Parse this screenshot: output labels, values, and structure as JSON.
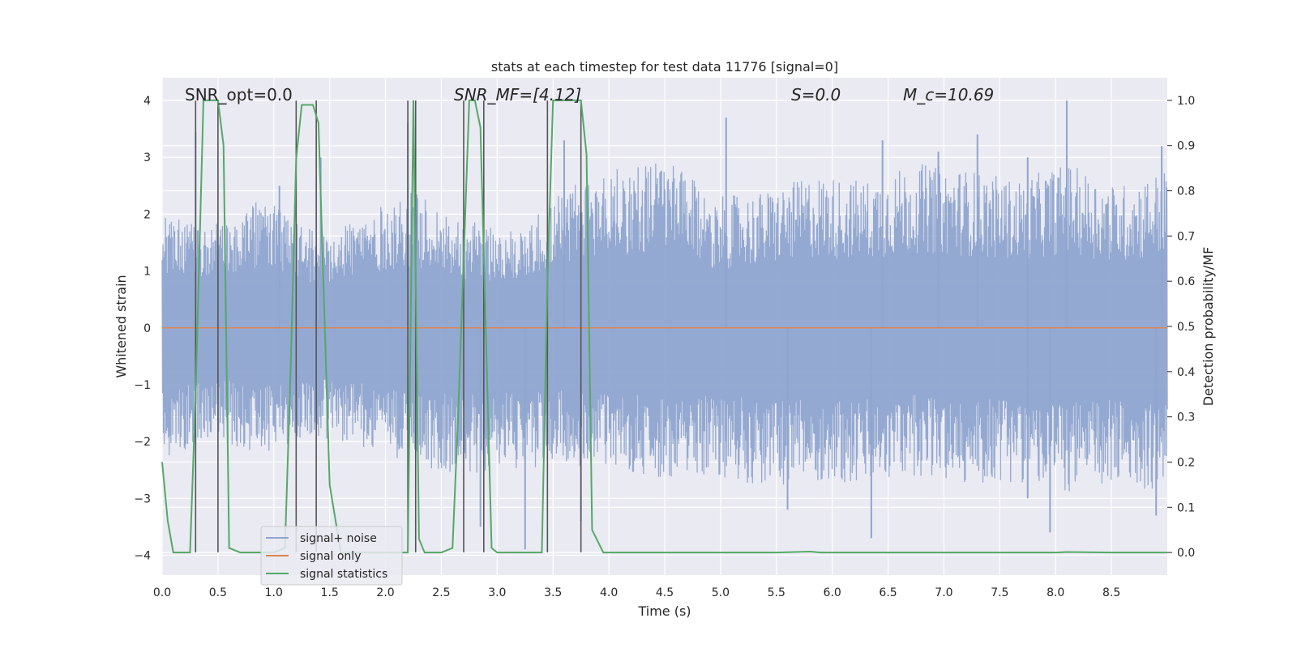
{
  "chart_data": {
    "type": "line",
    "title": "stats at each timestep for test data 11776 [signal=0]",
    "xlabel": "Time (s)",
    "ylabel": "Whitened strain",
    "y2label": "Detection probability/MF",
    "xlim": [
      0.0,
      9.0
    ],
    "ylim": [
      -4.35,
      4.4
    ],
    "y2lim": [
      -0.05,
      1.05
    ],
    "xticks": [
      0.0,
      0.5,
      1.0,
      1.5,
      2.0,
      2.5,
      3.0,
      3.5,
      4.0,
      4.5,
      5.0,
      5.5,
      6.0,
      6.5,
      7.0,
      7.5,
      8.0,
      8.5
    ],
    "xtick_labels": [
      "0.0",
      "0.5",
      "1.0",
      "1.5",
      "2.0",
      "2.5",
      "3.0",
      "3.5",
      "4.0",
      "4.5",
      "5.0",
      "5.5",
      "6.0",
      "6.5",
      "7.0",
      "7.5",
      "8.0",
      "8.5"
    ],
    "yticks": [
      -4,
      -3,
      -2,
      -1,
      0,
      1,
      2,
      3,
      4
    ],
    "ytick_labels": [
      "−4",
      "−3",
      "−2",
      "−1",
      "0",
      "1",
      "2",
      "3",
      "4"
    ],
    "y2ticks": [
      0.0,
      0.1,
      0.2,
      0.3,
      0.4,
      0.5,
      0.6,
      0.7,
      0.8,
      0.9,
      1.0
    ],
    "y2tick_labels": [
      "0.0",
      "0.1",
      "0.2",
      "0.3",
      "0.4",
      "0.5",
      "0.6",
      "0.7",
      "0.8",
      "0.9",
      "1.0"
    ],
    "grid": true,
    "legend_position": "lower-left",
    "annotations": [
      {
        "text": "SNR_opt=0.0",
        "x": 0.2,
        "y": 4.1
      },
      {
        "text": "SNR_MF=[4.12]",
        "x": 2.6,
        "y": 4.1
      },
      {
        "text": "S=0.0",
        "x": 5.6,
        "y": 4.1
      },
      {
        "text": "M_c=10.69",
        "x": 6.6,
        "y": 4.1
      }
    ],
    "series": [
      {
        "name": "signal+ noise",
        "color": "#8fa5cf",
        "axis": "left",
        "kind": "noise",
        "x_range": [
          0.0,
          9.0
        ],
        "envelope_upper": [
          2.0,
          1.8,
          2.3,
          1.7,
          2.0,
          2.4,
          1.9,
          1.7,
          2.5,
          2.8,
          3.0,
          2.3,
          2.4,
          2.7,
          2.6,
          2.9,
          2.8,
          2.6,
          2.9,
          2.5,
          2.8
        ],
        "envelope_lower": [
          -2.3,
          -2.0,
          -2.2,
          -1.9,
          -2.1,
          -2.4,
          -2.6,
          -2.5,
          -2.4,
          -2.5,
          -2.7,
          -2.6,
          -2.8,
          -2.7,
          -2.8,
          -2.6,
          -2.8,
          -2.7,
          -2.9,
          -2.8,
          -2.9
        ],
        "peaks": [
          {
            "x": 0.3,
            "y": 3.45
          },
          {
            "x": 1.05,
            "y": 2.5
          },
          {
            "x": 1.42,
            "y": 3.0
          },
          {
            "x": 2.2,
            "y": 3.6
          },
          {
            "x": 3.6,
            "y": 3.3
          },
          {
            "x": 5.05,
            "y": 3.7
          },
          {
            "x": 6.45,
            "y": 3.3
          },
          {
            "x": 6.95,
            "y": 3.1
          },
          {
            "x": 7.3,
            "y": 3.4
          },
          {
            "x": 7.75,
            "y": 3.0
          },
          {
            "x": 8.1,
            "y": 4.0
          },
          {
            "x": 8.95,
            "y": 3.2
          },
          {
            "x": 2.85,
            "y": -3.5
          },
          {
            "x": 3.25,
            "y": -3.9
          },
          {
            "x": 3.75,
            "y": -3.4
          },
          {
            "x": 5.6,
            "y": -3.2
          },
          {
            "x": 6.35,
            "y": -3.7
          },
          {
            "x": 7.75,
            "y": -3.0
          },
          {
            "x": 7.95,
            "y": -3.6
          },
          {
            "x": 8.9,
            "y": -3.3
          }
        ]
      },
      {
        "name": "signal only",
        "color": "#dd8452",
        "axis": "left",
        "x": [
          0.0,
          9.0
        ],
        "y": [
          0.0,
          0.0
        ]
      },
      {
        "name": "signal statistics",
        "color": "#55a868",
        "axis": "right",
        "x": [
          0.0,
          0.05,
          0.1,
          0.2,
          0.25,
          0.3,
          0.37,
          0.5,
          0.55,
          0.6,
          0.7,
          0.8,
          0.9,
          1.0,
          1.1,
          1.15,
          1.2,
          1.25,
          1.3,
          1.35,
          1.4,
          1.5,
          1.6,
          1.7,
          1.8,
          1.9,
          2.0,
          2.1,
          2.2,
          2.25,
          2.3,
          2.35,
          2.4,
          2.5,
          2.6,
          2.65,
          2.75,
          2.8,
          2.85,
          2.95,
          3.0,
          3.1,
          3.2,
          3.3,
          3.4,
          3.45,
          3.5,
          3.6,
          3.7,
          3.75,
          3.8,
          3.85,
          3.95,
          4.5,
          5.0,
          5.5,
          5.8,
          5.9,
          6.0,
          7.0,
          8.0,
          8.1,
          8.5,
          9.0
        ],
        "y": [
          0.2,
          0.07,
          0.0,
          0.0,
          0.0,
          0.35,
          1.0,
          1.0,
          0.9,
          0.01,
          0.0,
          0.0,
          0.0,
          0.0,
          0.01,
          0.4,
          0.87,
          0.99,
          0.99,
          0.99,
          0.95,
          0.15,
          0.0,
          0.0,
          0.0,
          0.0,
          0.0,
          0.0,
          0.0,
          1.0,
          0.03,
          0.0,
          0.0,
          0.0,
          0.01,
          0.3,
          1.0,
          1.0,
          0.94,
          0.01,
          0.0,
          0.0,
          0.0,
          0.0,
          0.0,
          0.6,
          1.0,
          1.0,
          1.0,
          1.0,
          0.88,
          0.05,
          0.0,
          0.0,
          0.0,
          0.0,
          0.002,
          0.0,
          0.0,
          0.0,
          0.0,
          0.001,
          0.0,
          0.0
        ]
      }
    ],
    "vlines": [
      0.3,
      0.5,
      1.2,
      1.38,
      2.2,
      2.27,
      2.7,
      2.88,
      3.45,
      3.75
    ]
  }
}
